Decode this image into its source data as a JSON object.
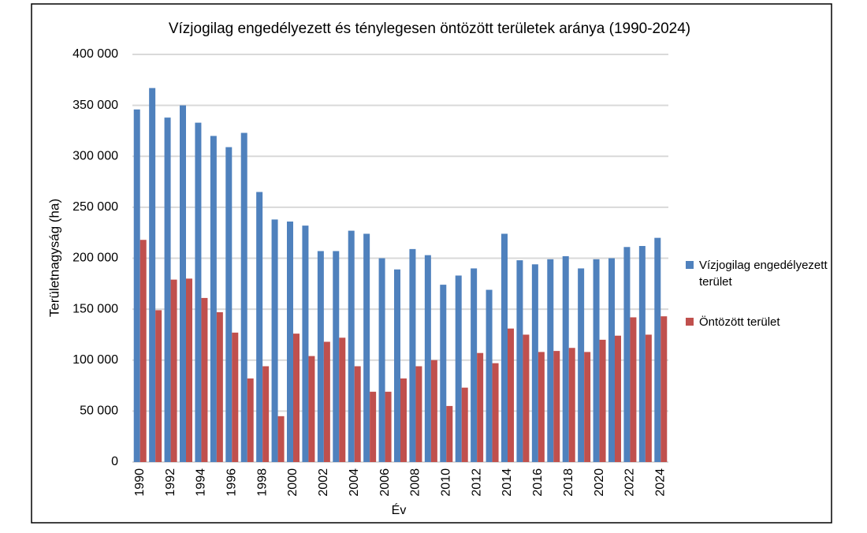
{
  "chart_data": {
    "type": "bar",
    "title": "Vízjogilag engedélyezett és ténylegesen öntözött területek aránya (1990-2024)",
    "y_label": "Területnagyság (ha)",
    "x_label": "Év",
    "categories": [
      "1990",
      null,
      "1992",
      null,
      "1994",
      null,
      "1996",
      null,
      "1998",
      null,
      "2000",
      null,
      "2002",
      null,
      "2004",
      null,
      "2006",
      null,
      "2008",
      null,
      "2010",
      null,
      "2012",
      null,
      "2014",
      null,
      "2016",
      null,
      "2018",
      null,
      "2020",
      null,
      "2022",
      null,
      "2024"
    ],
    "series": [
      {
        "name": "Vízjogilag engedélyezett terület",
        "color": "#4f81bd",
        "values": [
          346000,
          367000,
          338000,
          350000,
          333000,
          320000,
          309000,
          323000,
          265000,
          238000,
          236000,
          232000,
          207000,
          207000,
          227000,
          224000,
          200000,
          189000,
          209000,
          203000,
          174000,
          183000,
          190000,
          169000,
          224000,
          198000,
          194000,
          199000,
          202000,
          190000,
          199000,
          200000,
          211000,
          212000,
          220000
        ]
      },
      {
        "name": "Öntözött terület",
        "color": "#c0504d",
        "values": [
          218000,
          149000,
          179000,
          180000,
          161000,
          147000,
          127000,
          82000,
          94000,
          45000,
          126000,
          104000,
          118000,
          122000,
          94000,
          69000,
          69000,
          82000,
          94000,
          100000,
          55000,
          73000,
          107000,
          97000,
          131000,
          125000,
          108000,
          109000,
          112000,
          108000,
          120000,
          124000,
          142000,
          125000,
          143000
        ]
      }
    ],
    "ylim": [
      0,
      400000
    ],
    "yticks": [
      0,
      {
        "value": 50000,
        "label": "50 000"
      },
      {
        "value": 100000,
        "label": "100 000"
      },
      {
        "value": 150000,
        "label": "150 000"
      },
      {
        "value": 200000,
        "label": "200 000"
      },
      {
        "value": 250000,
        "label": "250 000"
      },
      {
        "value": 300000,
        "label": "300 000"
      },
      {
        "value": 350000,
        "label": "350 000"
      },
      {
        "value": 400000,
        "label": "400 000"
      }
    ],
    "grid": true,
    "legend": "right"
  }
}
